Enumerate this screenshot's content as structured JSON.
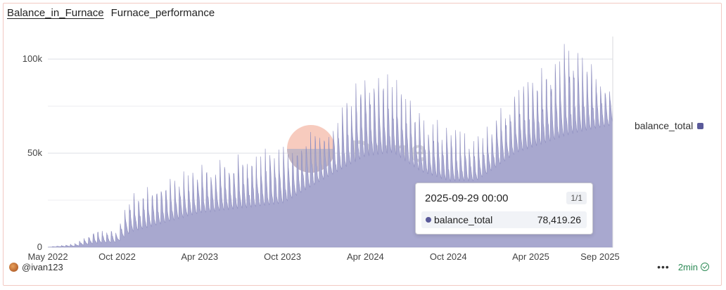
{
  "tabs": [
    {
      "label": "Balance_in_Furnace",
      "active": true
    },
    {
      "label": "Furnace_performance",
      "active": false
    }
  ],
  "chart_data": {
    "type": "area",
    "series": [
      {
        "name": "balance_total",
        "color": "#a8a8cf",
        "stroke": "#8f8fc0"
      }
    ],
    "x_range": [
      "2022-05-01",
      "2025-09-29"
    ],
    "ylim": [
      0,
      112000
    ],
    "y_ticks": [
      {
        "value": 0,
        "label": "0"
      },
      {
        "value": 50000,
        "label": "50k"
      },
      {
        "value": 100000,
        "label": "100k"
      }
    ],
    "x_ticks": [
      {
        "date": "2022-05-01",
        "label": "May 2022"
      },
      {
        "date": "2022-10-01",
        "label": "Oct 2022"
      },
      {
        "date": "2023-04-01",
        "label": "Apr 2023"
      },
      {
        "date": "2023-10-01",
        "label": "Oct 2023"
      },
      {
        "date": "2024-04-01",
        "label": "Apr 2024"
      },
      {
        "date": "2024-10-01",
        "label": "Oct 2024"
      },
      {
        "date": "2025-04-01",
        "label": "Apr 2025"
      },
      {
        "date": "2025-09-01",
        "label": "Sep 2025"
      }
    ],
    "envelope": [
      {
        "date": "2022-05-01",
        "base": 0,
        "peak": 0
      },
      {
        "date": "2022-07-01",
        "base": 500,
        "peak": 2000
      },
      {
        "date": "2022-08-15",
        "base": 2000,
        "peak": 10000
      },
      {
        "date": "2022-10-01",
        "base": 2500,
        "peak": 10000
      },
      {
        "date": "2022-11-01",
        "base": 8000,
        "peak": 29000
      },
      {
        "date": "2023-04-01",
        "base": 18000,
        "peak": 45000
      },
      {
        "date": "2023-10-01",
        "base": 23000,
        "peak": 55000
      },
      {
        "date": "2024-01-15",
        "base": 38000,
        "peak": 66000
      },
      {
        "date": "2024-04-01",
        "base": 48000,
        "peak": 98000
      },
      {
        "date": "2024-06-01",
        "base": 50000,
        "peak": 92000
      },
      {
        "date": "2024-08-01",
        "base": 40000,
        "peak": 72000
      },
      {
        "date": "2024-10-01",
        "base": 35000,
        "peak": 65000
      },
      {
        "date": "2024-12-01",
        "base": 35000,
        "peak": 58000
      },
      {
        "date": "2025-03-01",
        "base": 50000,
        "peak": 85000
      },
      {
        "date": "2025-07-01",
        "base": 60000,
        "peak": 112000
      },
      {
        "date": "2025-09-29",
        "base": 65000,
        "peak": 85000
      }
    ],
    "legend_position": "right",
    "grid": true,
    "tooltip": {
      "date": "2025-09-29 00:00",
      "page": "1/1",
      "series": "balance_total",
      "value": 78419.26,
      "value_label": "78,419.26"
    }
  },
  "watermark": {
    "text": "Dune"
  },
  "footer": {
    "user": "@ivan123",
    "more": "•••",
    "refresh": "2min"
  }
}
